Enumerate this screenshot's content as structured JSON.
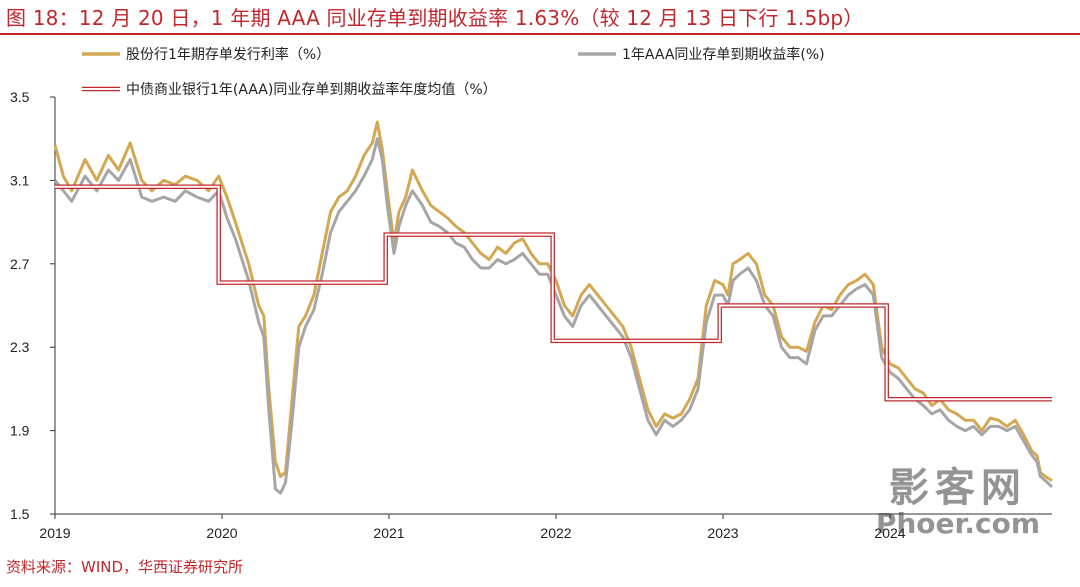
{
  "title": "图 18：12 月 20 日，1 年期 AAA 同业存单到期收益率 1.63%（较 12 月 13 日下行 1.5bp）",
  "source": "资料来源：WIND，华西证券研究所",
  "watermark": {
    "line1": "影客网",
    "line2": "Phoer.com"
  },
  "chart_data": {
    "type": "line",
    "x_range": [
      2019.0,
      2024.97
    ],
    "ylim": [
      1.5,
      3.5
    ],
    "yticks": [
      "3.5",
      "3.1",
      "2.7",
      "2.3",
      "1.9",
      "1.5"
    ],
    "xticks": [
      "2019",
      "2020",
      "2021",
      "2022",
      "2023",
      "2024"
    ],
    "grid": false,
    "legend_position": "top",
    "colors": {
      "gold": "#d4a853",
      "gray": "#a6a6a6",
      "red": "#c0282d"
    },
    "series": [
      {
        "name": "股份行1年期存单发行利率（%）",
        "style": "gold",
        "x": [
          2019.0,
          2019.05,
          2019.1,
          2019.18,
          2019.25,
          2019.32,
          2019.38,
          2019.45,
          2019.52,
          2019.58,
          2019.65,
          2019.72,
          2019.78,
          2019.85,
          2019.92,
          2019.98,
          2020.03,
          2020.08,
          2020.12,
          2020.16,
          2020.19,
          2020.22,
          2020.25,
          2020.28,
          2020.32,
          2020.35,
          2020.38,
          2020.42,
          2020.46,
          2020.5,
          2020.55,
          2020.6,
          2020.65,
          2020.7,
          2020.75,
          2020.8,
          2020.85,
          2020.9,
          2020.93,
          2020.96,
          2020.99,
          2021.03,
          2021.06,
          2021.1,
          2021.14,
          2021.2,
          2021.25,
          2021.3,
          2021.35,
          2021.4,
          2021.45,
          2021.5,
          2021.55,
          2021.6,
          2021.65,
          2021.7,
          2021.75,
          2021.8,
          2021.85,
          2021.9,
          2021.95,
          2022.0,
          2022.05,
          2022.1,
          2022.15,
          2022.2,
          2022.25,
          2022.3,
          2022.35,
          2022.4,
          2022.45,
          2022.5,
          2022.55,
          2022.6,
          2022.65,
          2022.7,
          2022.75,
          2022.8,
          2022.85,
          2022.9,
          2022.95,
          2023.0,
          2023.03,
          2023.06,
          2023.1,
          2023.15,
          2023.2,
          2023.25,
          2023.3,
          2023.35,
          2023.4,
          2023.45,
          2023.5,
          2023.55,
          2023.6,
          2023.65,
          2023.7,
          2023.75,
          2023.8,
          2023.85,
          2023.9,
          2023.95,
          2024.0,
          2024.05,
          2024.1,
          2024.15,
          2024.2,
          2024.25,
          2024.3,
          2024.35,
          2024.4,
          2024.45,
          2024.5,
          2024.55,
          2024.6,
          2024.65,
          2024.7,
          2024.75,
          2024.8,
          2024.85,
          2024.88,
          2024.9,
          2024.93,
          2024.97
        ],
        "y": [
          3.27,
          3.12,
          3.05,
          3.2,
          3.1,
          3.22,
          3.15,
          3.28,
          3.1,
          3.05,
          3.1,
          3.08,
          3.12,
          3.1,
          3.05,
          3.12,
          3.02,
          2.9,
          2.8,
          2.7,
          2.6,
          2.5,
          2.45,
          2.1,
          1.75,
          1.68,
          1.7,
          2.05,
          2.4,
          2.45,
          2.55,
          2.75,
          2.95,
          3.02,
          3.05,
          3.12,
          3.22,
          3.28,
          3.38,
          3.25,
          3.05,
          2.8,
          2.95,
          3.02,
          3.15,
          3.05,
          2.98,
          2.95,
          2.92,
          2.88,
          2.85,
          2.8,
          2.75,
          2.72,
          2.78,
          2.75,
          2.8,
          2.82,
          2.75,
          2.7,
          2.7,
          2.62,
          2.5,
          2.45,
          2.55,
          2.6,
          2.55,
          2.5,
          2.45,
          2.4,
          2.3,
          2.15,
          2.0,
          1.92,
          1.98,
          1.96,
          1.98,
          2.05,
          2.15,
          2.5,
          2.62,
          2.6,
          2.55,
          2.7,
          2.72,
          2.75,
          2.7,
          2.55,
          2.5,
          2.35,
          2.3,
          2.3,
          2.28,
          2.42,
          2.5,
          2.48,
          2.55,
          2.6,
          2.62,
          2.65,
          2.6,
          2.3,
          2.22,
          2.2,
          2.15,
          2.1,
          2.08,
          2.02,
          2.05,
          2.0,
          1.98,
          1.95,
          1.95,
          1.9,
          1.96,
          1.95,
          1.92,
          1.95,
          1.88,
          1.8,
          1.78,
          1.7,
          1.68,
          1.66
        ]
      },
      {
        "name": "1年AAA同业存单到期收益率(%)",
        "style": "gray",
        "x": [
          2019.0,
          2019.05,
          2019.1,
          2019.18,
          2019.25,
          2019.32,
          2019.38,
          2019.45,
          2019.52,
          2019.58,
          2019.65,
          2019.72,
          2019.78,
          2019.85,
          2019.92,
          2019.98,
          2020.03,
          2020.08,
          2020.12,
          2020.16,
          2020.19,
          2020.22,
          2020.25,
          2020.28,
          2020.32,
          2020.35,
          2020.38,
          2020.42,
          2020.46,
          2020.5,
          2020.55,
          2020.6,
          2020.65,
          2020.7,
          2020.75,
          2020.8,
          2020.85,
          2020.9,
          2020.93,
          2020.96,
          2020.99,
          2021.03,
          2021.06,
          2021.1,
          2021.14,
          2021.2,
          2021.25,
          2021.3,
          2021.35,
          2021.4,
          2021.45,
          2021.5,
          2021.55,
          2021.6,
          2021.65,
          2021.7,
          2021.75,
          2021.8,
          2021.85,
          2021.9,
          2021.95,
          2022.0,
          2022.05,
          2022.1,
          2022.15,
          2022.2,
          2022.25,
          2022.3,
          2022.35,
          2022.4,
          2022.45,
          2022.5,
          2022.55,
          2022.6,
          2022.65,
          2022.7,
          2022.75,
          2022.8,
          2022.85,
          2022.9,
          2022.95,
          2023.0,
          2023.03,
          2023.06,
          2023.1,
          2023.15,
          2023.2,
          2023.25,
          2023.3,
          2023.35,
          2023.4,
          2023.45,
          2023.5,
          2023.55,
          2023.6,
          2023.65,
          2023.7,
          2023.75,
          2023.8,
          2023.85,
          2023.9,
          2023.95,
          2024.0,
          2024.05,
          2024.1,
          2024.15,
          2024.2,
          2024.25,
          2024.3,
          2024.35,
          2024.4,
          2024.45,
          2024.5,
          2024.55,
          2024.6,
          2024.65,
          2024.7,
          2024.75,
          2024.8,
          2024.85,
          2024.88,
          2024.9,
          2024.93,
          2024.97
        ],
        "y": [
          3.1,
          3.05,
          3.0,
          3.12,
          3.05,
          3.15,
          3.1,
          3.2,
          3.02,
          3.0,
          3.02,
          3.0,
          3.05,
          3.02,
          3.0,
          3.05,
          2.92,
          2.82,
          2.72,
          2.62,
          2.52,
          2.42,
          2.35,
          2.0,
          1.62,
          1.6,
          1.65,
          1.95,
          2.3,
          2.4,
          2.48,
          2.65,
          2.85,
          2.95,
          3.0,
          3.05,
          3.12,
          3.2,
          3.3,
          3.2,
          2.98,
          2.75,
          2.88,
          2.98,
          3.05,
          2.98,
          2.9,
          2.88,
          2.85,
          2.8,
          2.78,
          2.72,
          2.68,
          2.68,
          2.72,
          2.7,
          2.72,
          2.75,
          2.7,
          2.65,
          2.65,
          2.55,
          2.45,
          2.4,
          2.5,
          2.55,
          2.5,
          2.45,
          2.4,
          2.35,
          2.25,
          2.1,
          1.95,
          1.88,
          1.95,
          1.92,
          1.95,
          2.0,
          2.1,
          2.42,
          2.55,
          2.55,
          2.5,
          2.62,
          2.65,
          2.68,
          2.62,
          2.5,
          2.45,
          2.3,
          2.25,
          2.25,
          2.22,
          2.38,
          2.45,
          2.45,
          2.5,
          2.55,
          2.58,
          2.6,
          2.55,
          2.25,
          2.18,
          2.15,
          2.1,
          2.05,
          2.02,
          1.98,
          2.0,
          1.95,
          1.92,
          1.9,
          1.92,
          1.88,
          1.92,
          1.92,
          1.9,
          1.92,
          1.85,
          1.78,
          1.75,
          1.68,
          1.66,
          1.63
        ]
      },
      {
        "name": "中债商业银行1年(AAA)同业存单到期收益率年度均值（%）",
        "style": "red-double",
        "x": [
          2019.0,
          2019.98,
          2019.98,
          2020.98,
          2020.98,
          2021.98,
          2021.98,
          2022.98,
          2022.98,
          2023.98,
          2023.98,
          2024.97
        ],
        "y": [
          3.07,
          3.07,
          2.61,
          2.61,
          2.84,
          2.84,
          2.33,
          2.33,
          2.5,
          2.5,
          2.05,
          2.05
        ]
      }
    ]
  }
}
